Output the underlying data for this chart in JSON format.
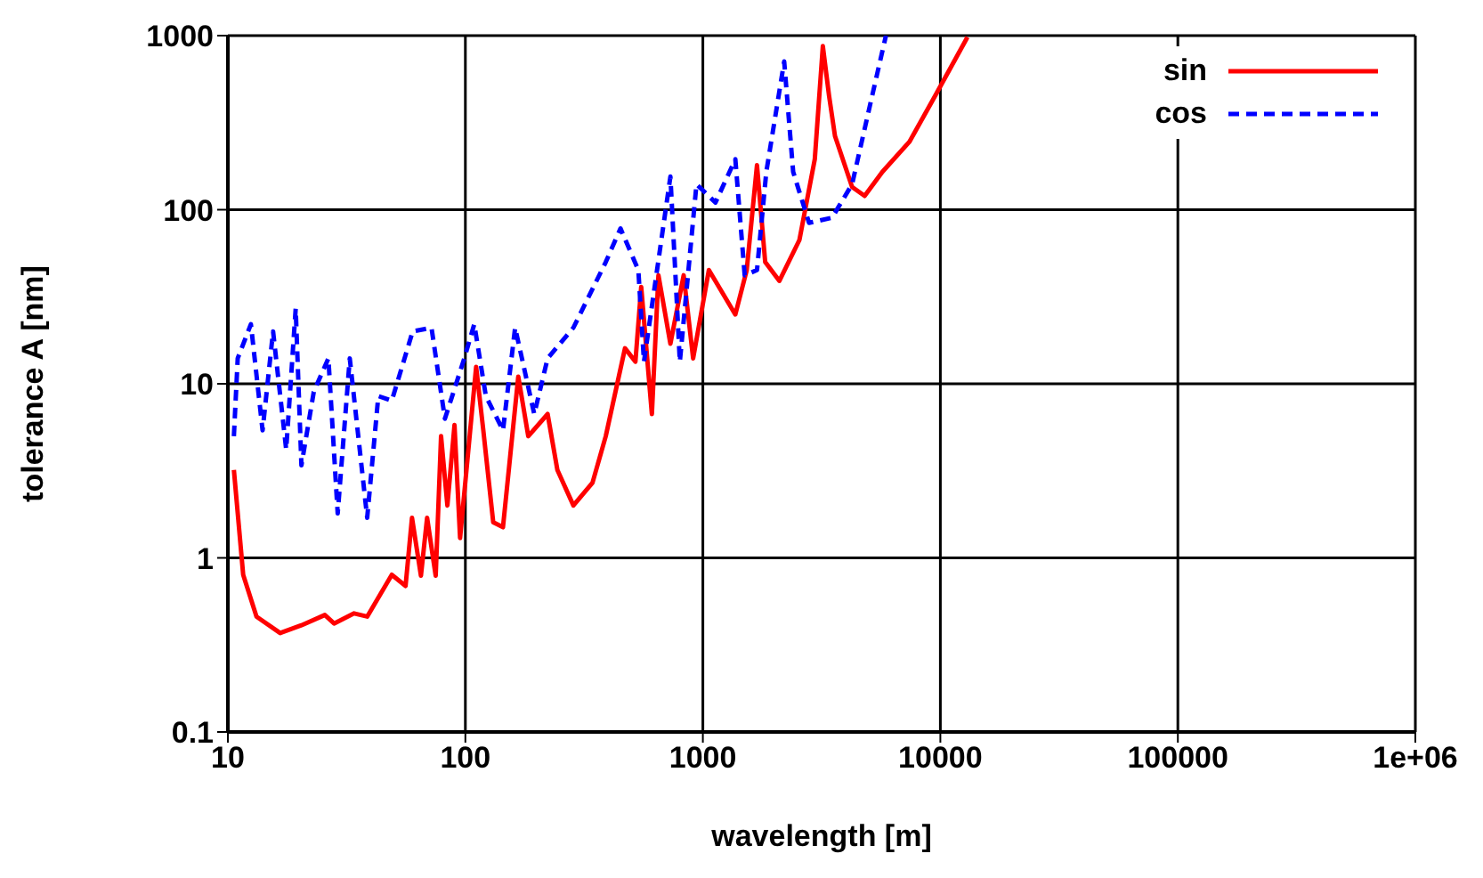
{
  "chart_data": {
    "type": "line",
    "xlabel": "wavelength [m]",
    "ylabel": "tolerance A [nm]",
    "log": "xy",
    "grid": true,
    "legend": "top right",
    "xlim": [
      10,
      1000000
    ],
    "xticks": [
      10,
      100,
      1000,
      10000,
      100000,
      {
        "value": 1000000,
        "label": "1e+06"
      }
    ],
    "ylim": [
      0.1,
      1000
    ],
    "yticks": [
      0.1,
      1,
      10,
      100,
      1000
    ],
    "series": [
      {
        "name": "sin",
        "color": "#ff0000",
        "line_style": "solid",
        "x": [
          10.6,
          11.6,
          13.2,
          16.6,
          20.4,
          25.6,
          28,
          34,
          38.6,
          49,
          56,
          59.6,
          65,
          69,
          75,
          79,
          84,
          90,
          95,
          111,
          119,
          131,
          144,
          167,
          184,
          222,
          244,
          285,
          343,
          390,
          470,
          520,
          550,
          610,
          650,
          730,
          830,
          910,
          1060,
          1370,
          1530,
          1690,
          1830,
          2100,
          2550,
          2960,
          3200,
          3400,
          3600,
          4250,
          4800,
          5700,
          7400,
          9500,
          13000
        ],
        "values": [
          3.2,
          0.8,
          0.46,
          0.37,
          0.41,
          0.47,
          0.42,
          0.48,
          0.46,
          0.8,
          0.69,
          1.7,
          0.79,
          1.7,
          0.79,
          5,
          2,
          5.8,
          1.3,
          12.5,
          5.4,
          1.6,
          1.5,
          11,
          5,
          6.7,
          3.2,
          2,
          2.7,
          5,
          16,
          13.4,
          36,
          6.7,
          42,
          17,
          42,
          14,
          45,
          25,
          45,
          180,
          50,
          39,
          67,
          195,
          870,
          450,
          265,
          135,
          120,
          165,
          245,
          450,
          980
        ]
      },
      {
        "name": "cos",
        "color": "#0000ff",
        "line_style": "dashed",
        "x": [
          10.6,
          11,
          12.5,
          14,
          15.5,
          17.6,
          19.3,
          20.4,
          23,
          26.5,
          29,
          32.6,
          38.6,
          43,
          49,
          60,
          72,
          82,
          99,
          109,
          122,
          144,
          162,
          195,
          222,
          285,
          390,
          450,
          535,
          565,
          730,
          800,
          940,
          1130,
          1370,
          1500,
          1690,
          1850,
          2200,
          2400,
          2800,
          3500,
          4250,
          5100,
          5900
        ],
        "values": [
          5,
          14,
          22,
          5.4,
          20,
          4.2,
          27,
          3.4,
          9,
          14,
          1.8,
          14,
          1.7,
          8.5,
          8,
          20,
          21,
          6.3,
          14,
          22,
          8.5,
          5.4,
          21,
          6.7,
          14,
          21,
          50,
          78,
          45,
          13.4,
          155,
          13.4,
          140,
          110,
          195,
          42,
          45,
          165,
          710,
          165,
          84,
          90,
          140,
          420,
          1000
        ]
      }
    ]
  }
}
